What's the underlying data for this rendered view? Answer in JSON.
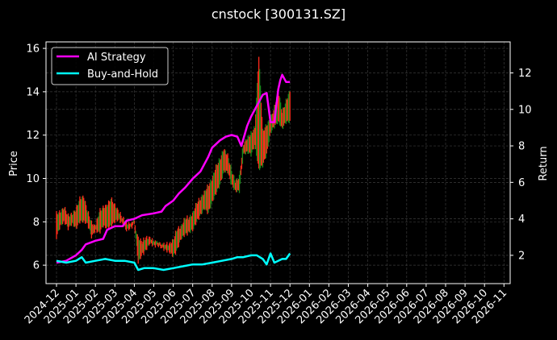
{
  "title": "cnstock [300131.SZ]",
  "colors": {
    "background": "#000000",
    "axes": "#ffffff",
    "grid": "#3a3a3a",
    "ai_strategy": "#ff00ff",
    "buy_and_hold": "#00ffff",
    "candle_up": "#ff2a1a",
    "candle_down": "#1a8a1a"
  },
  "chart_data": {
    "type": "line",
    "title": "cnstock [300131.SZ]",
    "xlabel": "",
    "ylabel": "Price",
    "ylabel_right": "Return",
    "ylim": [
      5.15,
      16.3
    ],
    "ylim_right": [
      0.45,
      13.7
    ],
    "yticks": [
      6,
      8,
      10,
      12,
      14,
      16
    ],
    "yticks_right": [
      2,
      4,
      6,
      8,
      10,
      12
    ],
    "grid": true,
    "legend_position": "upper left",
    "x_tick_labels": [
      "2024-12",
      "2025-01",
      "2025-02",
      "2025-03",
      "2025-04",
      "2025-05",
      "2025-06",
      "2025-07",
      "2025-08",
      "2025-09",
      "2025-10",
      "2025-11",
      "2025-12",
      "2026-01",
      "2026-02",
      "2026-03",
      "2026-04",
      "2026-05",
      "2026-06",
      "2026-07",
      "2026-08",
      "2026-09",
      "2026-10",
      "2026-11"
    ],
    "x_month_index_note": "x values are months since 2024-12 (0 = 2024-12)",
    "price_series": {
      "name": "Price (OHLC bars)",
      "x": [
        0.0,
        0.2,
        0.4,
        0.6,
        0.8,
        1.0,
        1.2,
        1.4,
        1.6,
        1.8,
        2.0,
        2.2,
        2.4,
        2.6,
        2.8,
        3.0,
        3.2,
        3.4,
        3.6,
        3.8,
        4.0,
        4.2,
        4.4,
        4.6,
        4.8,
        5.0,
        5.2,
        5.4,
        5.6,
        5.8,
        6.0,
        6.2,
        6.4,
        6.6,
        6.8,
        7.0,
        7.2,
        7.4,
        7.6,
        7.8,
        8.0,
        8.2,
        8.4,
        8.6,
        8.8,
        9.0,
        9.2,
        9.4,
        9.6,
        9.8,
        10.0,
        10.2,
        10.4,
        10.6,
        10.8,
        11.0,
        11.2,
        11.4,
        11.6,
        11.8,
        12.0
      ],
      "low": [
        7.2,
        7.7,
        7.9,
        7.6,
        7.8,
        7.6,
        7.9,
        7.9,
        7.8,
        7.2,
        7.5,
        7.4,
        7.7,
        7.6,
        7.7,
        7.9,
        8.0,
        7.8,
        7.5,
        7.6,
        7.8,
        6.0,
        6.4,
        6.6,
        6.9,
        6.8,
        6.8,
        6.7,
        6.6,
        6.5,
        6.3,
        6.6,
        7.1,
        7.3,
        7.4,
        7.5,
        7.9,
        8.2,
        8.5,
        8.3,
        8.8,
        9.2,
        9.6,
        10.2,
        10.2,
        9.6,
        9.3,
        9.3,
        11.0,
        11.1,
        11.0,
        11.4,
        10.3,
        10.5,
        11.0,
        12.0,
        12.3,
        12.5,
        12.2,
        12.5,
        12.5
      ],
      "high": [
        8.5,
        8.6,
        8.8,
        8.4,
        8.5,
        8.7,
        9.2,
        9.3,
        8.6,
        8.1,
        7.9,
        8.6,
        8.8,
        8.9,
        9.2,
        8.9,
        8.6,
        8.3,
        8.1,
        8.0,
        8.0,
        7.4,
        7.2,
        7.4,
        7.4,
        7.2,
        7.1,
        7.0,
        7.1,
        7.1,
        7.3,
        7.8,
        7.9,
        8.3,
        8.3,
        8.5,
        9.0,
        9.2,
        9.5,
        9.8,
        10.1,
        10.7,
        11.0,
        11.5,
        11.2,
        10.5,
        10.0,
        10.2,
        11.7,
        12.0,
        12.2,
        12.5,
        15.8,
        12.3,
        12.6,
        12.9,
        13.4,
        14.2,
        13.2,
        13.7,
        14.2
      ],
      "close": [
        8.0,
        8.2,
        8.3,
        8.0,
        8.2,
        8.1,
        8.6,
        8.5,
        8.1,
        7.6,
        7.7,
        8.2,
        8.4,
        8.5,
        8.7,
        8.3,
        8.3,
        8.0,
        7.9,
        7.8,
        7.9,
        6.7,
        6.9,
        7.0,
        7.1,
        7.0,
        6.9,
        6.8,
        6.8,
        6.8,
        6.9,
        7.3,
        7.6,
        7.9,
        7.9,
        8.1,
        8.5,
        8.8,
        9.1,
        9.2,
        9.6,
        10.0,
        10.5,
        11.0,
        10.7,
        10.0,
        9.7,
        9.8,
        11.3,
        11.6,
        11.6,
        12.0,
        11.0,
        11.4,
        11.9,
        12.6,
        12.9,
        13.2,
        12.8,
        13.0,
        13.4
      ]
    },
    "series": [
      {
        "name": "AI Strategy",
        "axis": "right",
        "x": [
          0.0,
          0.5,
          1.0,
          1.3,
          1.5,
          2.0,
          2.4,
          2.6,
          3.0,
          3.4,
          3.6,
          4.0,
          4.4,
          5.0,
          5.4,
          5.6,
          6.0,
          6.3,
          6.6,
          7.0,
          7.4,
          7.8,
          8.0,
          8.4,
          8.7,
          9.0,
          9.3,
          9.5,
          9.8,
          10.0,
          10.3,
          10.6,
          10.8,
          11.0,
          11.2,
          11.4,
          11.5,
          11.6,
          11.8,
          12.0
        ],
        "values": [
          1.6,
          1.7,
          2.0,
          2.3,
          2.6,
          2.8,
          2.9,
          3.4,
          3.6,
          3.6,
          3.9,
          4.0,
          4.2,
          4.3,
          4.4,
          4.7,
          5.0,
          5.4,
          5.7,
          6.2,
          6.6,
          7.4,
          7.9,
          8.3,
          8.5,
          8.6,
          8.5,
          8.0,
          9.1,
          9.6,
          10.2,
          10.8,
          10.9,
          9.3,
          9.3,
          11.1,
          11.6,
          11.9,
          11.5,
          11.5
        ]
      },
      {
        "name": "Buy-and-Hold",
        "axis": "right",
        "x": [
          0.0,
          0.5,
          1.0,
          1.3,
          1.5,
          2.0,
          2.5,
          3.0,
          3.5,
          4.0,
          4.2,
          4.5,
          5.0,
          5.5,
          6.0,
          6.5,
          7.0,
          7.5,
          8.0,
          8.5,
          9.0,
          9.3,
          9.6,
          10.0,
          10.3,
          10.6,
          10.8,
          11.0,
          11.2,
          11.4,
          11.6,
          11.8,
          12.0
        ],
        "values": [
          1.7,
          1.6,
          1.7,
          1.9,
          1.6,
          1.7,
          1.8,
          1.7,
          1.7,
          1.6,
          1.2,
          1.3,
          1.3,
          1.2,
          1.3,
          1.4,
          1.5,
          1.5,
          1.6,
          1.7,
          1.8,
          1.9,
          1.9,
          2.0,
          2.0,
          1.8,
          1.5,
          2.1,
          1.6,
          1.7,
          1.8,
          1.8,
          2.1
        ]
      }
    ]
  },
  "legend": {
    "items": [
      {
        "label": "AI Strategy",
        "color": "#ff00ff"
      },
      {
        "label": "Buy-and-Hold",
        "color": "#00ffff"
      }
    ]
  },
  "axes": {
    "left_label": "Price",
    "right_label": "Return"
  }
}
